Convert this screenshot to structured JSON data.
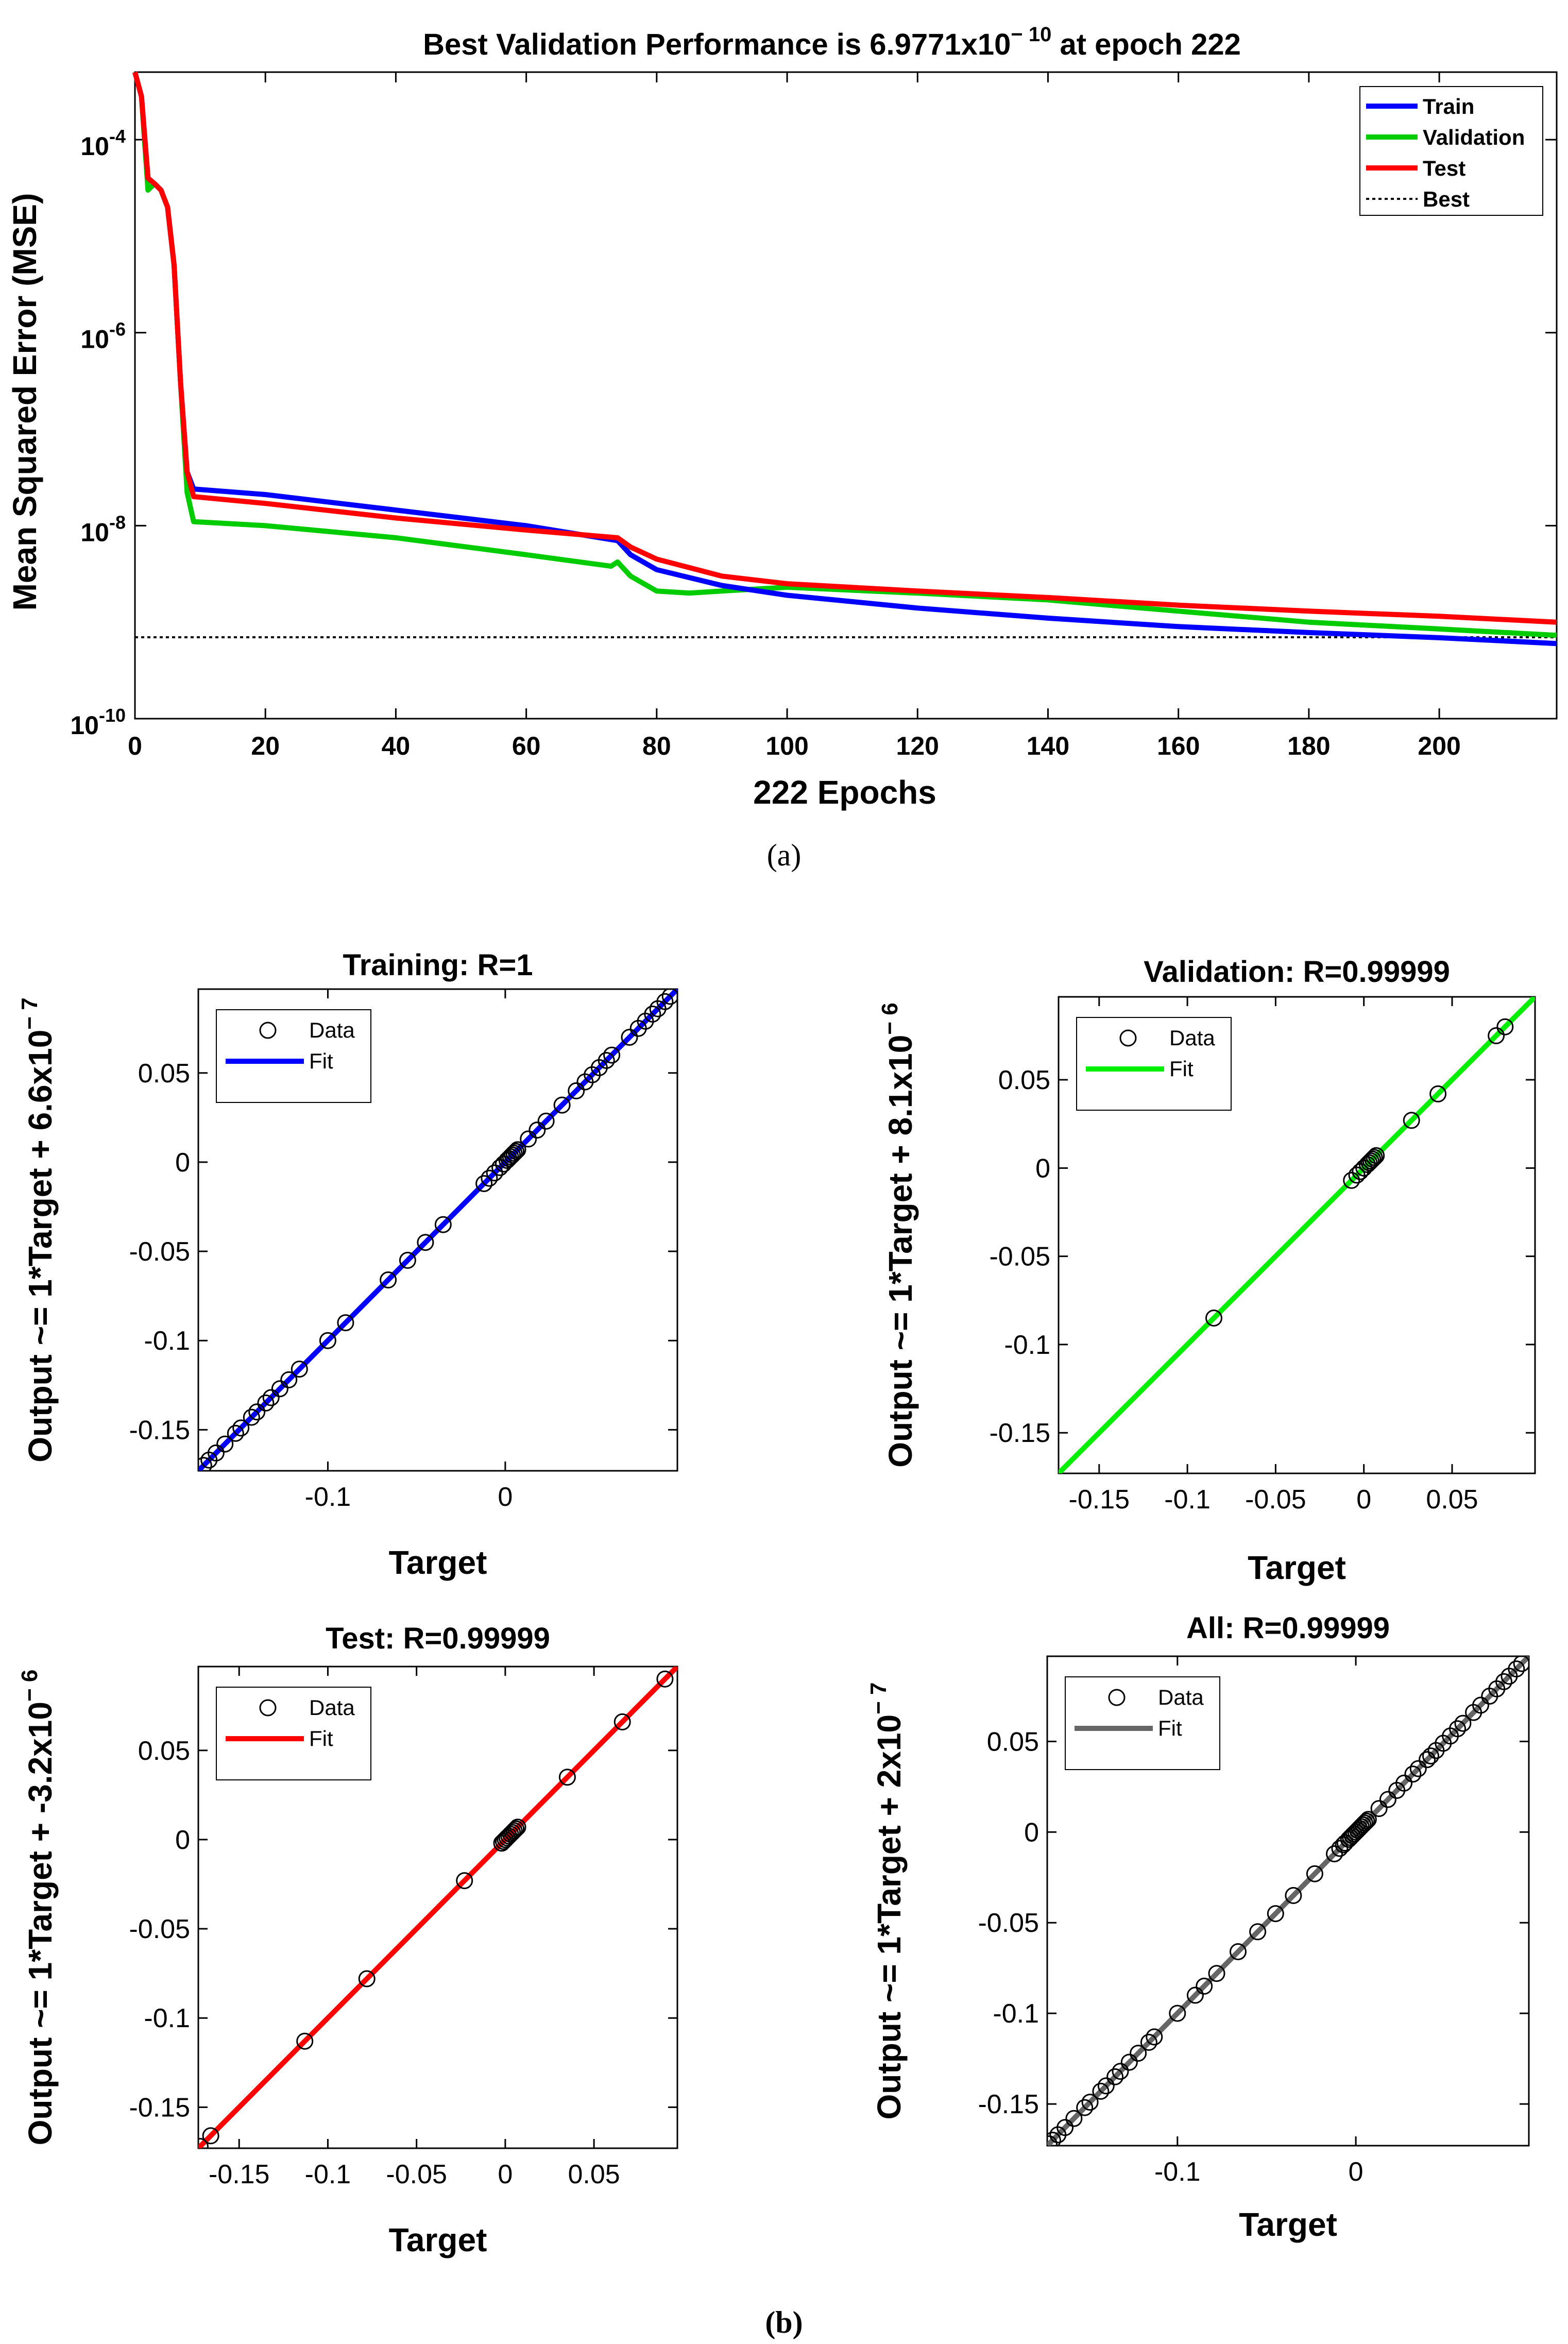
{
  "figure": {
    "caption_a": "(a)",
    "caption_b": "(b)"
  },
  "chart_data": [
    {
      "id": "perf",
      "type": "line",
      "yscale": "log",
      "title_main": "Best Validation Performance is 6.9771x10",
      "title_exp": "− 10",
      "title_tail": " at epoch 222",
      "xlabel": "222 Epochs",
      "ylabel": "Mean Squared Error  (MSE)",
      "xlim": [
        0,
        218
      ],
      "ylim_exp": [
        -10,
        -3.3
      ],
      "xticks": [
        0,
        20,
        40,
        60,
        80,
        100,
        120,
        140,
        160,
        180,
        200
      ],
      "yticks": [
        {
          "exp": -4,
          "base": "10",
          "sup": "-4"
        },
        {
          "exp": -6,
          "base": "10",
          "sup": "-6"
        },
        {
          "exp": -8,
          "base": "10",
          "sup": "-8"
        },
        {
          "exp": -10,
          "base": "10",
          "sup": "-10"
        }
      ],
      "best_value": 6.9771e-10,
      "best_epoch": 222,
      "series": [
        {
          "name": "Train",
          "color": "#0000ff",
          "x": [
            0,
            1,
            2,
            3,
            4,
            5,
            6,
            7,
            8,
            9,
            20,
            40,
            60,
            74,
            76,
            80,
            90,
            100,
            120,
            140,
            160,
            180,
            200,
            218
          ],
          "y": [
            0.0005,
            0.00028,
            4e-05,
            3.5e-05,
            3e-05,
            2e-05,
            5e-06,
            3e-07,
            3.6e-08,
            2.4e-08,
            2.1e-08,
            1.45e-08,
            1e-08,
            7e-09,
            5e-09,
            3.5e-09,
            2.4e-09,
            1.9e-09,
            1.4e-09,
            1.1e-09,
            9e-10,
            7.8e-10,
            6.9e-10,
            6e-10
          ]
        },
        {
          "name": "Validation",
          "color": "#00cc00",
          "x": [
            0,
            1,
            2,
            3,
            4,
            5,
            6,
            7,
            8,
            9,
            20,
            40,
            60,
            73,
            74,
            76,
            80,
            85,
            90,
            100,
            120,
            140,
            160,
            180,
            200,
            218
          ],
          "y": [
            0.0005,
            0.00028,
            3e-05,
            3.5e-05,
            3e-05,
            2e-05,
            5e-06,
            3e-07,
            2.2e-08,
            1.1e-08,
            1e-08,
            7.5e-09,
            5e-09,
            3.8e-09,
            4.2e-09,
            3e-09,
            2.1e-09,
            2e-09,
            2.1e-09,
            2.3e-09,
            2e-09,
            1.7e-09,
            1.3e-09,
            1e-09,
            8.5e-10,
            7.3e-10
          ]
        },
        {
          "name": "Test",
          "color": "#ff0000",
          "x": [
            0,
            1,
            2,
            3,
            4,
            5,
            6,
            7,
            8,
            9,
            20,
            40,
            60,
            74,
            76,
            80,
            90,
            100,
            120,
            140,
            160,
            180,
            200,
            218
          ],
          "y": [
            0.0005,
            0.00028,
            4e-05,
            3.5e-05,
            3e-05,
            2e-05,
            5e-06,
            3e-07,
            3.6e-08,
            2e-08,
            1.7e-08,
            1.2e-08,
            9e-09,
            7.5e-09,
            6e-09,
            4.5e-09,
            3e-09,
            2.5e-09,
            2.1e-09,
            1.8e-09,
            1.5e-09,
            1.3e-09,
            1.15e-09,
            1e-09
          ]
        },
        {
          "name": "Best",
          "color": "#000000",
          "dashed": true,
          "x": [
            0,
            218
          ],
          "y": [
            6.9771e-10,
            6.9771e-10
          ]
        }
      ],
      "legend": [
        "Train",
        "Validation",
        "Test",
        "Best"
      ],
      "legend_position": "top-right"
    },
    {
      "id": "training",
      "type": "scatter",
      "title": "Training: R=1",
      "xlabel": "Target",
      "ylabel_main": "Output ~= 1*Target + 6.6x10",
      "ylabel_exp": "− 7",
      "xlim": [
        -0.173,
        0.097
      ],
      "ylim": [
        -0.173,
        0.097
      ],
      "xticks": [
        -0.1,
        0
      ],
      "xtick_labels": [
        "-0.1",
        "0"
      ],
      "yticks": [
        0.05,
        0,
        -0.05,
        -0.1,
        -0.15
      ],
      "ytick_labels": [
        "0.05",
        "0",
        "-0.05",
        "-0.1",
        "-0.15"
      ],
      "fit_color": "#0000ff",
      "legend": {
        "data": "Data",
        "fit": "Fit"
      },
      "points": [
        -0.17,
        -0.167,
        -0.163,
        -0.158,
        -0.152,
        -0.149,
        -0.143,
        -0.14,
        -0.135,
        -0.132,
        -0.127,
        -0.122,
        -0.116,
        -0.1,
        -0.09,
        -0.066,
        -0.055,
        -0.045,
        -0.035,
        -0.012,
        -0.009,
        -0.006,
        -0.003,
        -0.001,
        0.001,
        0.002,
        0.003,
        0.004,
        0.005,
        0.006,
        0.007,
        0.013,
        0.018,
        0.023,
        0.032,
        0.04,
        0.045,
        0.049,
        0.053,
        0.057,
        0.06,
        0.07,
        0.075,
        0.079,
        0.083,
        0.086,
        0.09,
        0.093
      ]
    },
    {
      "id": "validation",
      "type": "scatter",
      "title": "Validation: R=0.99999",
      "xlabel": "Target",
      "ylabel_main": "Output ~= 1*Target + 8.1x10",
      "ylabel_exp": "− 6",
      "xlim": [
        -0.173,
        0.097
      ],
      "ylim": [
        -0.173,
        0.097
      ],
      "xticks": [
        -0.15,
        -0.1,
        -0.05,
        0,
        0.05
      ],
      "xtick_labels": [
        "-0.15",
        "-0.1",
        "-0.05",
        "0",
        "0.05"
      ],
      "yticks": [
        0.05,
        0,
        -0.05,
        -0.1,
        -0.15
      ],
      "ytick_labels": [
        "0.05",
        "0",
        "-0.05",
        "-0.1",
        "-0.15"
      ],
      "fit_color": "#00ee00",
      "legend": {
        "data": "Data",
        "fit": "Fit"
      },
      "points": [
        -0.085,
        -0.007,
        -0.004,
        -0.002,
        0,
        0.002,
        0.003,
        0.004,
        0.005,
        0.006,
        0.007,
        0.027,
        0.042,
        0.075,
        0.08
      ]
    },
    {
      "id": "test",
      "type": "scatter",
      "title": "Test: R=0.99999",
      "xlabel": "Target",
      "ylabel_main": "Output ~= 1*Target + -3.2x10",
      "ylabel_exp": "− 6",
      "xlim": [
        -0.173,
        0.097
      ],
      "ylim": [
        -0.173,
        0.097
      ],
      "xticks": [
        -0.15,
        -0.1,
        -0.05,
        0,
        0.05
      ],
      "xtick_labels": [
        "-0.15",
        "-0.1",
        "-0.05",
        "0",
        "0.05"
      ],
      "yticks": [
        0.05,
        0,
        -0.05,
        -0.1,
        -0.15
      ],
      "ytick_labels": [
        "0.05",
        "0",
        "-0.05",
        "-0.1",
        "-0.15"
      ],
      "fit_color": "#ff0000",
      "legend": {
        "data": "Data",
        "fit": "Fit"
      },
      "points": [
        -0.172,
        -0.166,
        -0.113,
        -0.078,
        -0.023,
        -0.002,
        -0.001,
        0,
        0.001,
        0.002,
        0.003,
        0.004,
        0.005,
        0.006,
        0.007,
        0.035,
        0.066,
        0.09
      ]
    },
    {
      "id": "all",
      "type": "scatter",
      "title": "All: R=0.99999",
      "xlabel": "Target",
      "ylabel_main": "Output ~= 1*Target + 2x10",
      "ylabel_exp": "− 7",
      "xlim": [
        -0.173,
        0.097
      ],
      "ylim": [
        -0.173,
        0.097
      ],
      "xticks": [
        -0.1,
        0
      ],
      "xtick_labels": [
        "-0.1",
        "0"
      ],
      "yticks": [
        0.05,
        0,
        -0.05,
        -0.1,
        -0.15
      ],
      "ytick_labels": [
        "0.05",
        "0",
        "-0.05",
        "-0.1",
        "-0.15"
      ],
      "fit_color": "#666666",
      "legend": {
        "data": "Data",
        "fit": "Fit"
      },
      "points": [
        -0.172,
        -0.17,
        -0.167,
        -0.163,
        -0.158,
        -0.152,
        -0.149,
        -0.143,
        -0.14,
        -0.135,
        -0.132,
        -0.127,
        -0.122,
        -0.116,
        -0.113,
        -0.1,
        -0.09,
        -0.085,
        -0.078,
        -0.066,
        -0.055,
        -0.045,
        -0.035,
        -0.023,
        -0.012,
        -0.009,
        -0.007,
        -0.006,
        -0.004,
        -0.003,
        -0.002,
        -0.001,
        0,
        0.001,
        0.002,
        0.003,
        0.004,
        0.005,
        0.006,
        0.007,
        0.013,
        0.018,
        0.023,
        0.027,
        0.032,
        0.035,
        0.04,
        0.042,
        0.045,
        0.049,
        0.053,
        0.057,
        0.06,
        0.066,
        0.07,
        0.075,
        0.079,
        0.083,
        0.086,
        0.09,
        0.093
      ]
    }
  ]
}
